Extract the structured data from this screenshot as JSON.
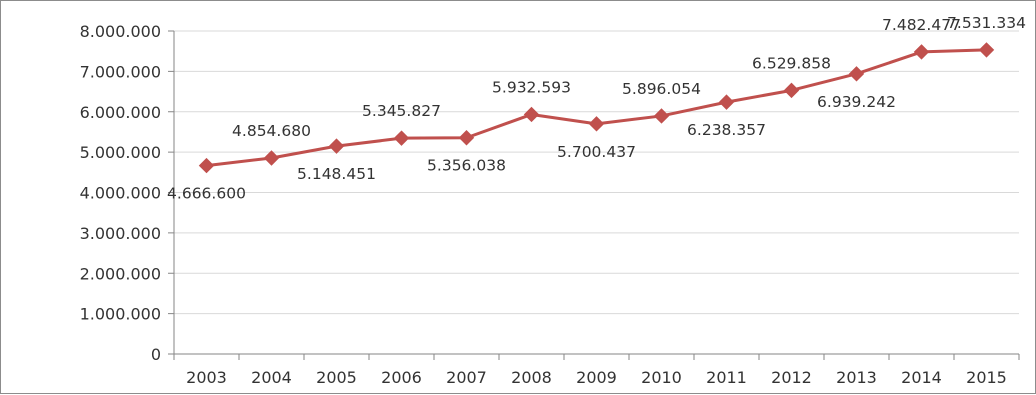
{
  "chart_data": {
    "type": "line",
    "title": "",
    "xlabel": "",
    "ylabel": "",
    "x": [
      "2003",
      "2004",
      "2005",
      "2006",
      "2007",
      "2008",
      "2009",
      "2010",
      "2011",
      "2012",
      "2013",
      "2014",
      "2015"
    ],
    "series": [
      {
        "values": [
          4666600,
          4854680,
          5148451,
          5345827,
          5356038,
          5932593,
          5700437,
          5896054,
          6238357,
          6529858,
          6939242,
          7482477,
          7531334
        ],
        "labels": [
          "4.666.600",
          "4.854.680",
          "5.148.451",
          "5.345.827",
          "5.356.038",
          "5.932.593",
          "5.700.437",
          "5.896.054",
          "6.238.357",
          "6.529.858",
          "6.939.242",
          "7.482.477",
          "7.531.334"
        ],
        "label_positions": [
          "below",
          "above",
          "below",
          "above",
          "below",
          "above",
          "below",
          "above",
          "below",
          "above",
          "below",
          "above",
          "above"
        ],
        "color": "#c0504d",
        "marker": "diamond"
      }
    ],
    "ylim": [
      0,
      8000000
    ],
    "yticks": [
      0,
      1000000,
      2000000,
      3000000,
      4000000,
      5000000,
      6000000,
      7000000,
      8000000
    ],
    "ytick_labels": [
      "0",
      "1.000.000",
      "2.000.000",
      "3.000.000",
      "4.000.000",
      "5.000.000",
      "6.000.000",
      "7.000.000",
      "8.000.000"
    ],
    "grid": true,
    "legend": "none",
    "colors": {
      "line": "#c0504d",
      "grid": "#d9d9d9",
      "axis": "#868686",
      "text": "#333333"
    }
  }
}
